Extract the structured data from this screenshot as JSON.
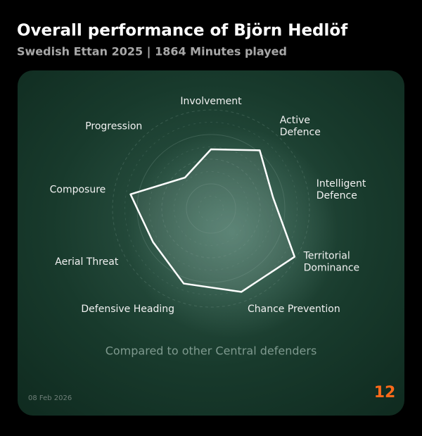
{
  "chart_data": {
    "type": "radar",
    "title": "Overall performance of Björn Hedlöf",
    "subtitle": "Swedish Ettan 2025 | 1864 Minutes played",
    "categories": [
      "Involvement",
      "Active\nDefence",
      "Intelligent\nDefence",
      "Territorial\nDominance",
      "Chance Prevention",
      "Defensive Heading",
      "Aerial Threat",
      "Composure",
      "Progression"
    ],
    "values": [
      60,
      77,
      64,
      98,
      90,
      81,
      68,
      83,
      41
    ],
    "rlim": [
      0,
      100
    ],
    "color": "#ffffff",
    "note": "Compared to other Central defenders",
    "date": "08 Feb 2026",
    "logo": "12"
  }
}
